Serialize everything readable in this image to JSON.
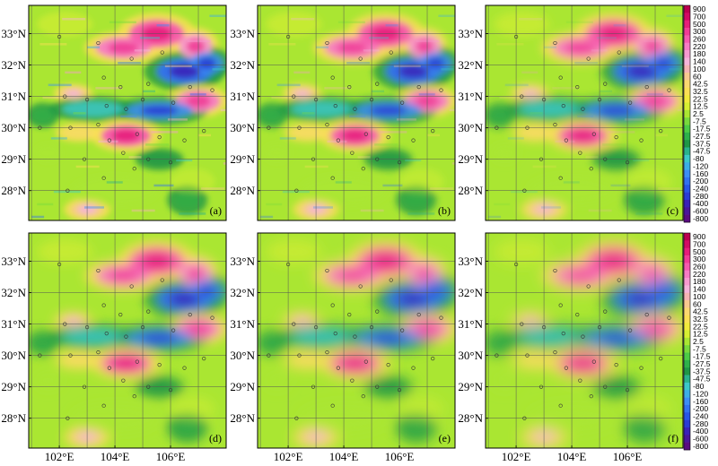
{
  "chart_data": {
    "type": "heatmap",
    "panels": [
      {
        "label": "(a)"
      },
      {
        "label": "(b)"
      },
      {
        "label": "(c)"
      },
      {
        "label": "(d)"
      },
      {
        "label": "(e)"
      },
      {
        "label": "(f)"
      }
    ],
    "lat_ticks": [
      "28°N",
      "29°N",
      "30°N",
      "31°N",
      "32°N",
      "33°N"
    ],
    "lat_values": [
      28,
      29,
      30,
      31,
      32,
      33
    ],
    "lon_ticks": [
      "102°E",
      "104°E",
      "106°E"
    ],
    "lon_values": [
      102,
      104,
      106
    ],
    "extent": {
      "lon": [
        100.9,
        108.0
      ],
      "lat": [
        27.05,
        33.9
      ]
    },
    "colorbar_levels": [
      "900",
      "700",
      "500",
      "300",
      "260",
      "220",
      "180",
      "140",
      "100",
      "60",
      "42.5",
      "32.5",
      "22.5",
      "12.5",
      "2.5",
      "-7.5",
      "-17.5",
      "-27.5",
      "-37.5",
      "-47.5",
      "-80",
      "-120",
      "-160",
      "-200",
      "-240",
      "-280",
      "-400",
      "-600",
      "-800"
    ],
    "colorbar_colors": [
      "#bb0050",
      "#d20a64",
      "#e61e7a",
      "#f03c96",
      "#f55aae",
      "#f77cc4",
      "#f79ad0",
      "#f5b4da",
      "#f5b4b4",
      "#f8c98f",
      "#fbd870",
      "#fcdf55",
      "#f2ea3c",
      "#d7ef32",
      "#aae632",
      "#78d93c",
      "#4ccb46",
      "#2eb14a",
      "#1f9646",
      "#2ab28c",
      "#3cc8c8",
      "#3caee6",
      "#3c8ef5",
      "#3272f0",
      "#2856e6",
      "#2a3cd4",
      "#3a22b8",
      "#4a169a",
      "#5a0c80"
    ]
  }
}
